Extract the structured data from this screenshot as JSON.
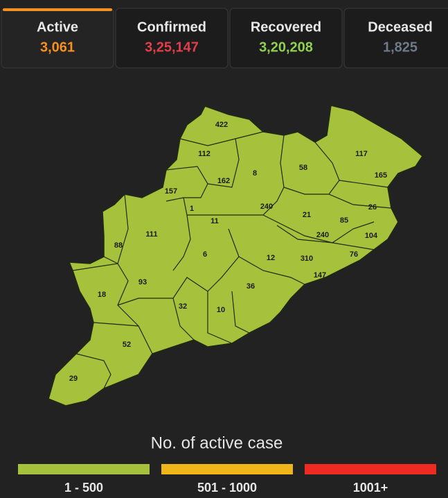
{
  "tabs": [
    {
      "label": "Active",
      "value": "3,061",
      "color": "#f6901e"
    },
    {
      "label": "Confirmed",
      "value": "3,25,147",
      "color": "#e23d4a"
    },
    {
      "label": "Recovered",
      "value": "3,20,208",
      "color": "#8fd14f"
    },
    {
      "label": "Deceased",
      "value": "1,825",
      "color": "#6c7a89"
    }
  ],
  "map": {
    "districts": [
      "422",
      "112",
      "117",
      "165",
      "162",
      "8",
      "58",
      "157",
      "1",
      "240",
      "26",
      "21",
      "11",
      "85",
      "111",
      "240",
      "104",
      "88",
      "6",
      "12",
      "310",
      "76",
      "147",
      "93",
      "36",
      "18",
      "32",
      "10",
      "52",
      "29"
    ]
  },
  "legend": {
    "title": "No. of active case",
    "items": [
      {
        "label": "1 - 500",
        "color": "#a6c13c"
      },
      {
        "label": "501 - 1000",
        "color": "#f0b619"
      },
      {
        "label": "1001+",
        "color": "#ef2a20"
      }
    ]
  }
}
